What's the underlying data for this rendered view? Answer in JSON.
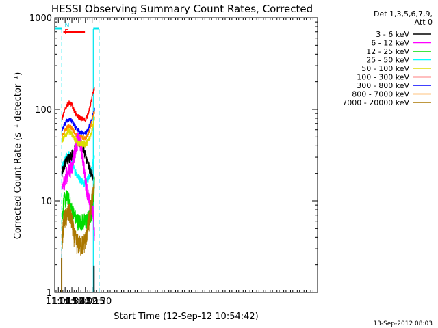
{
  "chart_data": {
    "type": "line",
    "title": "HESSI Observing Summary Count Rates, Corrected",
    "xlabel": "Start Time (12-Sep-12 10:54:42)",
    "ylabel": "Corrected Count Rate (s⁻¹ detector⁻¹)",
    "timestamp": "13-Sep-2012 08:03",
    "yscale": "log",
    "ylim": [
      1,
      1000
    ],
    "xlim_min": [
      652,
      1235
    ],
    "y_ticks": [
      {
        "value": 1,
        "label": "1"
      },
      {
        "value": 10,
        "label": "10"
      },
      {
        "value": 100,
        "label": "100"
      },
      {
        "value": 1000,
        "label": "1000"
      }
    ],
    "x_ticks": [
      {
        "min": 660,
        "label": "11:00"
      },
      {
        "min": 675,
        "label": "11:15"
      },
      {
        "min": 690,
        "label": "11:30"
      },
      {
        "min": 705,
        "label": "11:45"
      },
      {
        "min": 720,
        "label": "12:00"
      },
      {
        "min": 735,
        "label": "12:15"
      },
      {
        "min": 750,
        "label": "12:30"
      }
    ],
    "legend_header": [
      "Det 1,3,5,6,7,9,",
      "Att 0"
    ],
    "legend_placement": "outside-right",
    "flags": [
      {
        "label": "N",
        "color": "#4ad8e8"
      },
      {
        "label": "F",
        "color": "#ff0000"
      }
    ],
    "night_segments": [
      [
        652,
        667.5
      ],
      [
        737.5,
        750.5
      ]
    ],
    "flare_segment": [
      671,
      719
    ],
    "saa_markers": [
      667.5,
      737.5
    ],
    "series": [
      {
        "name": "3 - 6 keV",
        "color": "#000000",
        "x": [
          667.6,
          672,
          678,
          684,
          690,
          695,
          700,
          705,
          710,
          715,
          720,
          725,
          730,
          734,
          737
        ],
        "y": [
          20,
          24,
          28,
          30,
          32,
          36,
          42,
          45,
          42,
          38,
          32,
          26,
          22,
          20,
          18
        ],
        "tail": {
          "x": [
            737.6,
            740.5
          ],
          "y": 1.4
        }
      },
      {
        "name": "6 - 12 keV",
        "color": "#ff00ff",
        "x": [
          667.6,
          672,
          678,
          684,
          690,
          695,
          700,
          705,
          710,
          715,
          720,
          725,
          730,
          734,
          737,
          740.5
        ],
        "y": [
          13,
          16,
          19,
          22,
          24,
          32,
          42,
          48,
          40,
          28,
          17,
          12,
          9,
          8,
          8,
          4
        ]
      },
      {
        "name": "12 - 25 keV",
        "color": "#00dd00",
        "x": [
          667.6,
          672,
          678,
          684,
          690,
          695,
          700,
          705,
          710,
          715,
          720,
          725,
          730,
          734,
          737,
          740.5
        ],
        "y": [
          6,
          10,
          11,
          10,
          8,
          7,
          6.2,
          6,
          6,
          6,
          6,
          6.3,
          6.8,
          7.5,
          11,
          16
        ]
      },
      {
        "name": "25 - 50 keV",
        "color": "#00ffff",
        "x": [
          667.6,
          672,
          678,
          684,
          690,
          695,
          700,
          705,
          710,
          715,
          720,
          725,
          730,
          734,
          737,
          740.5
        ],
        "y": [
          22,
          26,
          30,
          32,
          27,
          22,
          20,
          18,
          17,
          16,
          16,
          17,
          19,
          22,
          27,
          34
        ]
      },
      {
        "name": "50 - 100 keV",
        "color": "#dddd00",
        "x": [
          667.6,
          672,
          678,
          684,
          690,
          695,
          700,
          705,
          710,
          715,
          720,
          725,
          730,
          734,
          737,
          740.5
        ],
        "y": [
          45,
          50,
          55,
          58,
          54,
          48,
          45,
          43,
          42,
          42,
          42,
          44,
          50,
          58,
          68,
          80
        ]
      },
      {
        "name": "100 - 300 keV",
        "color": "#ff0000",
        "x": [
          667.6,
          672,
          678,
          684,
          690,
          695,
          700,
          705,
          710,
          715,
          720,
          725,
          730,
          734,
          737,
          740.5
        ],
        "y": [
          78,
          90,
          110,
          118,
          112,
          98,
          88,
          82,
          80,
          78,
          77,
          86,
          105,
          130,
          155,
          170
        ]
      },
      {
        "name": "300 - 800 keV",
        "color": "#0000ff",
        "x": [
          667.6,
          672,
          678,
          684,
          690,
          695,
          700,
          705,
          710,
          715,
          720,
          725,
          730,
          734,
          737,
          740.5
        ],
        "y": [
          58,
          65,
          75,
          78,
          75,
          68,
          62,
          58,
          56,
          55,
          55,
          58,
          68,
          78,
          90,
          98
        ]
      },
      {
        "name": "800 - 7000 keV",
        "color": "#ff8800",
        "x": [
          667.6,
          672,
          678,
          684,
          690,
          695,
          700,
          705,
          710,
          715,
          720,
          725,
          730,
          734,
          737,
          740.5
        ],
        "y": [
          50,
          55,
          62,
          66,
          63,
          57,
          52,
          50,
          50,
          49,
          49,
          52,
          60,
          72,
          86,
          96
        ]
      },
      {
        "name": "7000 - 20000 keV",
        "color": "#aa7700",
        "x": [
          667.6,
          672,
          678,
          684,
          690,
          695,
          700,
          705,
          710,
          715,
          720,
          725,
          730,
          734,
          737,
          740.5
        ],
        "y": [
          3.5,
          6,
          7,
          7.5,
          6,
          4.2,
          3.6,
          3.4,
          3.3,
          3.4,
          3.8,
          5,
          7,
          10,
          13,
          15
        ]
      }
    ]
  }
}
